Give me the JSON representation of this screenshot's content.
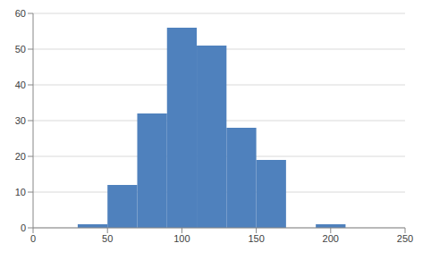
{
  "chart_data": {
    "type": "histogram",
    "bins": [
      30,
      50,
      70,
      90,
      110,
      130,
      150,
      170,
      190,
      210
    ],
    "values": [
      1,
      12,
      32,
      56,
      51,
      28,
      19,
      0,
      1
    ],
    "color": "#4f81bd",
    "xlim": [
      0,
      250
    ],
    "xticks": [
      0,
      50,
      100,
      150,
      200,
      250
    ],
    "ylim": [
      0,
      60
    ],
    "yticks": [
      0,
      10,
      20,
      30,
      40,
      50,
      60
    ],
    "grid": true
  }
}
